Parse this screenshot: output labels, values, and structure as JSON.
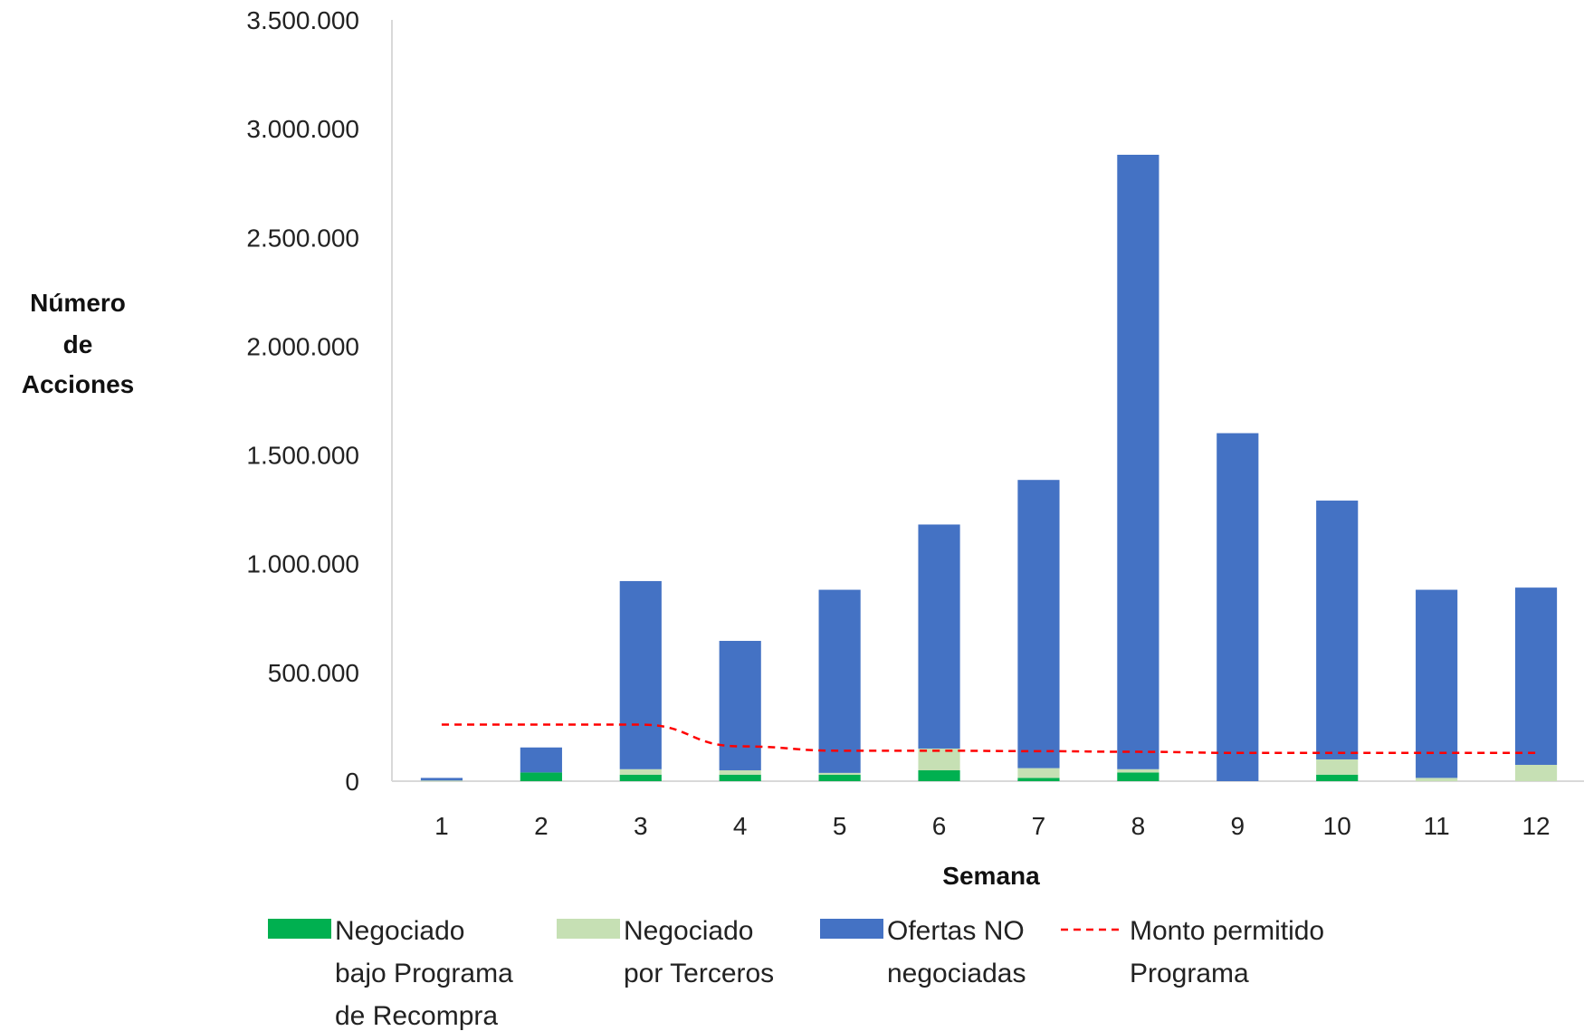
{
  "chart_data": {
    "type": "bar",
    "stacked": true,
    "categories": [
      "1",
      "2",
      "3",
      "4",
      "5",
      "6",
      "7",
      "8",
      "9",
      "10",
      "11",
      "12"
    ],
    "series": [
      {
        "name": "Negociado bajo Programa de Recompra",
        "legend_lines": [
          "Negociado",
          "bajo Programa",
          "de Recompra"
        ],
        "kind": "bar",
        "color": "#00b050",
        "values": [
          0,
          40000,
          30000,
          30000,
          30000,
          50000,
          15000,
          40000,
          0,
          30000,
          0,
          0
        ]
      },
      {
        "name": "Negociado por Terceros",
        "legend_lines": [
          "Negociado",
          "por Terceros"
        ],
        "kind": "bar",
        "color": "#c6e0b4",
        "values": [
          3000,
          0,
          25000,
          20000,
          8000,
          100000,
          45000,
          15000,
          0,
          70000,
          15000,
          75000
        ]
      },
      {
        "name": "Ofertas NO negociadas",
        "legend_lines": [
          "Ofertas NO",
          "negociadas"
        ],
        "kind": "bar",
        "color": "#4472c4",
        "values": [
          12000,
          115000,
          865000,
          595000,
          842000,
          1030000,
          1325000,
          2825000,
          1600000,
          1190000,
          865000,
          815000
        ]
      },
      {
        "name": "Monto permitido Programa",
        "legend_lines": [
          "Monto permitido",
          "Programa"
        ],
        "kind": "line",
        "style": "dashed",
        "color": "#ff0000",
        "values": [
          260000,
          260000,
          260000,
          160000,
          140000,
          140000,
          138000,
          135000,
          130000,
          130000,
          130000,
          130000
        ]
      }
    ],
    "ylabel_lines": [
      "Número",
      "de",
      "Acciones"
    ],
    "xlabel": "Semana",
    "ylim": [
      0,
      3500000
    ],
    "yticks": [
      {
        "value": 0,
        "label": "0"
      },
      {
        "value": 500000,
        "label": "500.000"
      },
      {
        "value": 1000000,
        "label": "1.000.000"
      },
      {
        "value": 1500000,
        "label": "1.500.000"
      },
      {
        "value": 2000000,
        "label": "2.000.000"
      },
      {
        "value": 2500000,
        "label": "2.500.000"
      },
      {
        "value": 3000000,
        "label": "3.000.000"
      },
      {
        "value": 3500000,
        "label": "3.500.000"
      }
    ],
    "grid": false,
    "legend": "bottom"
  }
}
